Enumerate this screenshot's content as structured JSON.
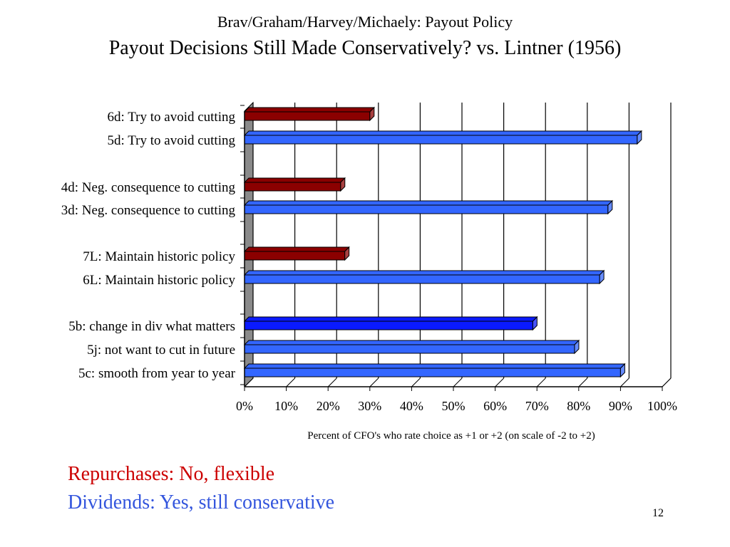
{
  "slide": {
    "subtitle": "Brav/Graham/Harvey/Michaely: Payout Policy",
    "title": "Payout Decisions Still Made Conservatively? vs. Lintner (1956)",
    "note_repurchases": "Repurchases: No, flexible",
    "note_dividends": "Dividends: Yes, still conservative",
    "page_number": "12"
  },
  "colors": {
    "repurchase_bar": "#8b0000",
    "dividend_bar": "#3366ff",
    "highlight_bar": "#0a1aff",
    "note_red": "#cc0000",
    "note_blue": "#3355dd"
  },
  "chart_data": {
    "type": "bar",
    "orientation": "horizontal",
    "xlabel": "Percent of CFO's who rate choice as +1 or +2 (on scale of -2  to +2)",
    "xlim": [
      0,
      100
    ],
    "xticks": [
      "0%",
      "10%",
      "20%",
      "30%",
      "40%",
      "50%",
      "60%",
      "70%",
      "80%",
      "90%",
      "100%"
    ],
    "grid": true,
    "categories": [
      "6d: Try to avoid cutting",
      "5d: Try to avoid cutting",
      "4d: Neg. consequence to cutting",
      "3d: Neg. consequence to cutting",
      "7L: Maintain historic policy",
      "6L: Maintain historic policy",
      "5b: change in div what matters",
      "5j: not want to cut in future",
      "5c: smooth from year to year"
    ],
    "values": [
      30,
      94,
      23,
      87,
      24,
      85,
      69,
      79,
      90
    ],
    "bar_type": [
      "repurchase",
      "dividend",
      "repurchase",
      "dividend",
      "repurchase",
      "dividend",
      "highlight",
      "dividend",
      "dividend"
    ]
  }
}
